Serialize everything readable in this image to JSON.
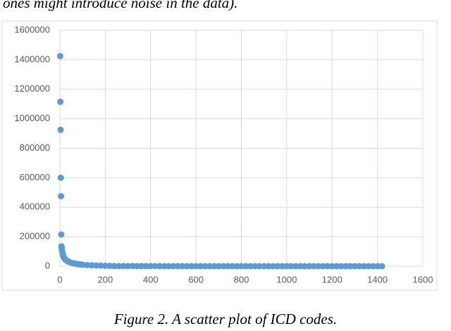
{
  "preceding_text": "ones might introduce noise in the data).",
  "caption": "Figure 2. A scatter plot of ICD codes.",
  "chart_data": {
    "type": "scatter",
    "color": "#5b9bd5",
    "grid": true,
    "x": [
      1,
      2,
      3,
      4,
      5,
      6,
      7,
      8,
      9,
      10,
      12,
      14,
      16,
      18,
      20,
      25,
      30,
      35,
      40,
      50,
      60,
      70,
      80,
      90,
      100,
      120,
      140,
      160,
      180,
      200,
      220,
      240,
      260,
      280,
      300,
      320,
      340,
      360,
      380,
      400,
      420,
      440,
      460,
      480,
      500,
      520,
      540,
      560,
      580,
      600,
      620,
      640,
      660,
      680,
      700,
      720,
      740,
      760,
      780,
      800,
      820,
      840,
      860,
      880,
      900,
      920,
      940,
      960,
      980,
      1000,
      1020,
      1040,
      1060,
      1080,
      1100,
      1120,
      1140,
      1160,
      1180,
      1200,
      1220,
      1240,
      1260,
      1280,
      1300,
      1320,
      1340,
      1360,
      1380,
      1400,
      1420
    ],
    "values": [
      1425000,
      1115000,
      925000,
      600000,
      475000,
      215000,
      135000,
      125000,
      110000,
      100000,
      85000,
      75000,
      65000,
      58000,
      52000,
      45000,
      38000,
      33000,
      29000,
      24000,
      20000,
      17000,
      14000,
      12000,
      10000,
      8000,
      6000,
      5000,
      4000,
      3000,
      2000,
      1000,
      1000,
      1000,
      1000,
      1000,
      1000,
      1000,
      1000,
      1000,
      1000,
      500,
      500,
      500,
      500,
      500,
      500,
      500,
      500,
      500,
      500,
      500,
      500,
      500,
      500,
      500,
      500,
      500,
      500,
      500,
      500,
      100,
      100,
      100,
      100,
      100,
      100,
      100,
      100,
      100,
      100,
      100,
      100,
      100,
      100,
      100,
      100,
      100,
      100,
      100,
      100,
      100,
      100,
      100,
      100,
      100,
      100,
      100,
      100,
      100,
      100
    ],
    "xlim": [
      0,
      1600
    ],
    "xticks": [
      0,
      200,
      400,
      600,
      800,
      1000,
      1200,
      1400,
      1600
    ],
    "ylim": [
      0,
      1600000
    ],
    "yticks": [
      0,
      200000,
      400000,
      600000,
      800000,
      1000000,
      1200000,
      1400000,
      1600000
    ]
  }
}
